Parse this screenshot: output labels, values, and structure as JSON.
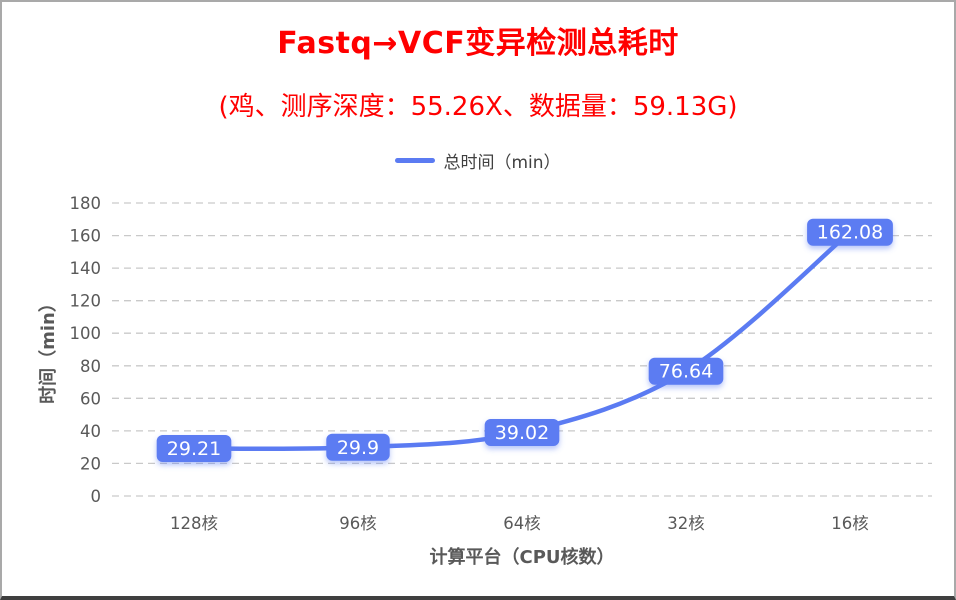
{
  "title": "Fastq→VCF变异检测总耗时",
  "subtitle": "(鸡、测序深度：55.26X、数据量：59.13G)",
  "legend": {
    "label": "总时间（min）"
  },
  "colors": {
    "title_red": "#ff0000",
    "series_blue": "#5b7bf2",
    "gridline": "#c9c9c9",
    "axis_text": "#595959",
    "data_label_text": "#ffffff"
  },
  "chart_data": {
    "type": "line",
    "categories": [
      "128核",
      "96核",
      "64核",
      "32核",
      "16核"
    ],
    "series": [
      {
        "name": "总时间（min）",
        "values": [
          29.21,
          29.9,
          39.02,
          76.64,
          162.08
        ]
      }
    ],
    "point_labels": [
      "29.21",
      "29.9",
      "39.02",
      "76.64",
      "162.08"
    ],
    "title": "Fastq→VCF变异检测总耗时",
    "subtitle": "(鸡、测序深度：55.26X、数据量：59.13G)",
    "xlabel": "计算平台（CPU核数）",
    "ylabel": "时间（min）",
    "ylim": [
      0,
      180
    ],
    "y_tick_step": 20,
    "y_tick_labels": [
      "0",
      "20",
      "40",
      "60",
      "80",
      "100",
      "120",
      "140",
      "160",
      "180"
    ],
    "grid": "horizontal-dashed",
    "legend_position": "top",
    "line_style": "smooth"
  }
}
